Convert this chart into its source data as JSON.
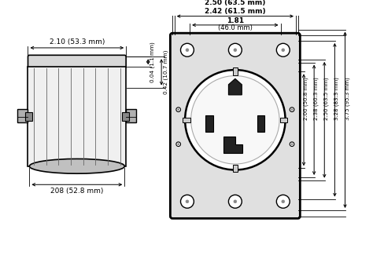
{
  "bg_color": "#ffffff",
  "line_color": "#000000",
  "left_dims": {
    "width_label": "2.10 (53.3 mm)",
    "bottom_label": "208 (52.8 mm)",
    "right_top_label": "0.04 (1.1 mm)",
    "right_bot_label": "0.42 (10.7 mm)"
  },
  "top_dims": {
    "dim1": "2.50 (63.5 mm)",
    "dim2": "2.42 (61.5 mm)",
    "dim3_a": "1.81",
    "dim3_b": "(46.0 mm)"
  },
  "right_dims": {
    "d1": "2.00 (50.8 mm)",
    "d2": "2.38 (60.3 mm)",
    "d3": "2.50 (63.5 mm)",
    "d4": "3.28 (83.3 mm)",
    "d5": "3.75 (95.3 mm)"
  }
}
